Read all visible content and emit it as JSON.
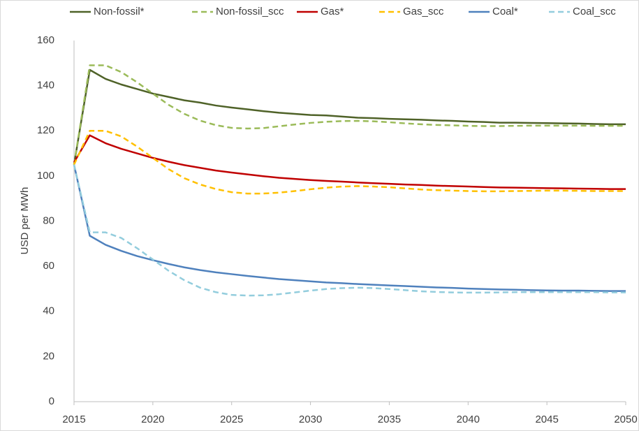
{
  "chart_data": {
    "type": "line",
    "y_label": "USD per MWh",
    "x": [
      2015,
      2016,
      2017,
      2018,
      2019,
      2020,
      2021,
      2022,
      2023,
      2024,
      2025,
      2026,
      2027,
      2028,
      2029,
      2030,
      2031,
      2032,
      2033,
      2034,
      2035,
      2036,
      2037,
      2038,
      2039,
      2040,
      2041,
      2042,
      2043,
      2044,
      2045,
      2046,
      2047,
      2048,
      2049,
      2050
    ],
    "series": [
      {
        "name": "Non-fossil*",
        "color": "#4f6228",
        "style": "solid",
        "values": [
          105,
          147,
          143,
          140.5,
          138.5,
          136.5,
          135,
          133.5,
          132.5,
          131.2,
          130.3,
          129.5,
          128.7,
          128,
          127.5,
          127,
          126.8,
          126.3,
          125.8,
          125.6,
          125.3,
          125.1,
          124.9,
          124.6,
          124.4,
          124.1,
          123.9,
          123.6,
          123.6,
          123.5,
          123.4,
          123.3,
          123.2,
          123,
          122.9,
          122.9
        ]
      },
      {
        "name": "Non-fossil_scc",
        "color": "#9bbb59",
        "style": "dashed",
        "values": [
          105,
          149,
          149,
          146,
          141.5,
          136.5,
          131.5,
          127.5,
          124.5,
          122.5,
          121.3,
          121,
          121.2,
          122,
          122.8,
          123.5,
          124,
          124.3,
          124.4,
          124.2,
          123.8,
          123.3,
          122.9,
          122.6,
          122.4,
          122.2,
          122.1,
          122.1,
          122.2,
          122.3,
          122.3,
          122.3,
          122.3,
          122.2,
          122.2,
          122.2
        ]
      },
      {
        "name": "Gas*",
        "color": "#c00000",
        "style": "solid",
        "values": [
          106,
          118,
          114.5,
          112,
          110,
          108,
          106.3,
          104.8,
          103.6,
          102.4,
          101.5,
          100.7,
          99.9,
          99.2,
          98.7,
          98.2,
          97.8,
          97.5,
          97.1,
          96.8,
          96.5,
          96.2,
          96,
          95.7,
          95.5,
          95.3,
          95.1,
          94.9,
          94.8,
          94.7,
          94.6,
          94.5,
          94.4,
          94.3,
          94.2,
          94.2
        ]
      },
      {
        "name": "Gas_scc",
        "color": "#ffc000",
        "style": "dashed",
        "values": [
          105,
          120,
          120,
          117.5,
          113,
          108,
          103,
          99,
          96.2,
          94.2,
          92.8,
          92.2,
          92.2,
          92.6,
          93.3,
          94.1,
          94.8,
          95.3,
          95.5,
          95.3,
          95,
          94.5,
          94,
          93.7,
          93.5,
          93.3,
          93.2,
          93.2,
          93.3,
          93.4,
          93.5,
          93.5,
          93.4,
          93.3,
          93.3,
          93.3
        ]
      },
      {
        "name": "Coal*",
        "color": "#4f81bd",
        "style": "solid",
        "values": [
          105,
          73.5,
          69.5,
          66.8,
          64.5,
          62.7,
          61,
          59.5,
          58.3,
          57.3,
          56.5,
          55.7,
          55,
          54.3,
          53.8,
          53.3,
          52.8,
          52.5,
          52.1,
          51.8,
          51.5,
          51.2,
          50.9,
          50.6,
          50.4,
          50.1,
          49.9,
          49.7,
          49.6,
          49.4,
          49.3,
          49.2,
          49.2,
          49.1,
          49,
          49
        ]
      },
      {
        "name": "Coal_scc",
        "color": "#93cddd",
        "style": "dashed",
        "values": [
          105,
          75,
          75,
          72.5,
          68,
          63,
          58,
          53.8,
          50.5,
          48.5,
          47.3,
          47,
          47.1,
          47.6,
          48.4,
          49.2,
          49.9,
          50.3,
          50.5,
          50.3,
          49.9,
          49.4,
          48.9,
          48.6,
          48.4,
          48.3,
          48.3,
          48.4,
          48.5,
          48.5,
          48.5,
          48.5,
          48.5,
          48.5,
          48.4,
          48.4
        ]
      }
    ],
    "xlim": [
      2015,
      2050
    ],
    "xticks": [
      2015,
      2020,
      2025,
      2030,
      2035,
      2040,
      2045,
      2050
    ],
    "ylim": [
      0,
      160
    ],
    "yticks": [
      0,
      20,
      40,
      60,
      80,
      100,
      120,
      140,
      160
    ],
    "grid": false,
    "legend": "top"
  }
}
